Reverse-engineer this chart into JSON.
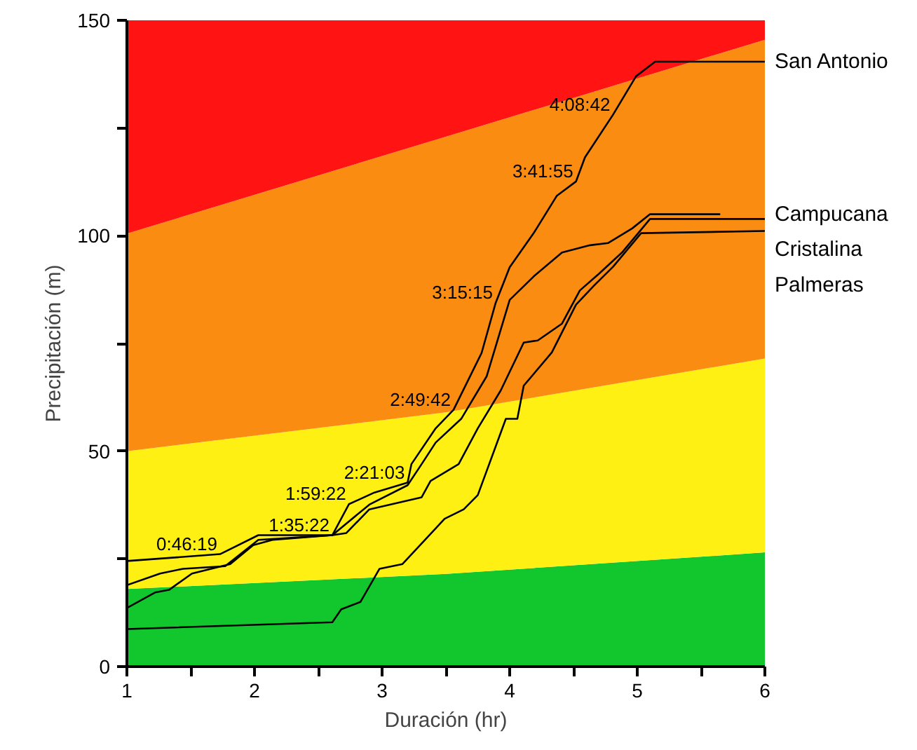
{
  "chart_data": {
    "type": "line",
    "xlabel": "Duración (hr)",
    "ylabel": "Precipitación (m)",
    "xlim": [
      1,
      6
    ],
    "ylim": [
      0,
      150
    ],
    "xticks": [
      1,
      {
        "value": 1.5,
        "label": null
      },
      2,
      {
        "value": 2.5,
        "label": null
      },
      3,
      {
        "value": 3.5,
        "label": null
      },
      4,
      {
        "value": 4.5,
        "label": null
      },
      5,
      {
        "value": 5.5,
        "label": null
      },
      6
    ],
    "yticks": [
      0,
      {
        "value": 25,
        "label": null
      },
      50,
      {
        "value": 75,
        "label": null
      },
      100,
      {
        "value": 125,
        "label": null
      },
      150
    ],
    "grid": false,
    "legend": false,
    "stacked": true,
    "series": [
      {
        "type": "area",
        "color": "#12c62e",
        "x": [
          1,
          3.5,
          6
        ],
        "values": [
          18,
          21.5,
          26.5
        ]
      },
      {
        "type": "area",
        "color": "#fff014",
        "x": [
          1,
          3.5,
          6
        ],
        "values": [
          32,
          37.5,
          45
        ]
      },
      {
        "type": "area",
        "color": "#fb8c12",
        "x": [
          1,
          3.5,
          6
        ],
        "values": [
          50.5,
          64,
          74
        ]
      },
      {
        "type": "area",
        "color": "#ff1313",
        "x": [
          1,
          3.5,
          6
        ],
        "values": [
          49.5,
          27,
          4.5
        ]
      },
      {
        "name": "San Antonio",
        "color": "#000000",
        "x": [
          1.0,
          1.73,
          2.03,
          2.61,
          2.74,
          2.94,
          3.2,
          3.23,
          3.42,
          3.56,
          3.78,
          3.89,
          4.0,
          4.19,
          4.37,
          4.52,
          4.59,
          4.81,
          4.99,
          5.14,
          6.0
        ],
        "values": [
          24.5,
          26.1,
          30.5,
          30.5,
          37.7,
          40.4,
          42.7,
          47,
          55.3,
          59.6,
          72.8,
          84.4,
          92.7,
          100.7,
          109.3,
          112.6,
          118.2,
          128.1,
          137,
          140.4,
          140.4
        ]
      },
      {
        "name": "Campucana",
        "color": "#000000",
        "x": [
          1.0,
          1.26,
          1.44,
          1.77,
          2.03,
          2.61,
          2.9,
          3.2,
          3.31,
          3.42,
          3.62,
          3.82,
          4.0,
          4.19,
          4.41,
          4.63,
          4.77,
          4.96,
          5.1,
          5.65
        ],
        "values": [
          18.9,
          21.6,
          22.7,
          23.3,
          29.4,
          30.5,
          37.6,
          42.1,
          47,
          52,
          57.5,
          67.4,
          85.1,
          90.6,
          96.1,
          97.8,
          98.3,
          101.7,
          105,
          105
        ]
      },
      {
        "name": "Cristalina",
        "color": "#000000",
        "x": [
          1.0,
          1.22,
          1.33,
          1.51,
          1.81,
          1.99,
          2.14,
          2.61,
          2.72,
          2.9,
          3.31,
          3.38,
          3.6,
          3.75,
          3.93,
          4.11,
          4.22,
          4.41,
          4.55,
          4.7,
          4.88,
          5.1,
          6.0
        ],
        "values": [
          13.6,
          17.2,
          17.8,
          21.6,
          23.8,
          28.2,
          29.4,
          30.5,
          31,
          36.5,
          39.3,
          43.1,
          47,
          55.3,
          64.1,
          75.2,
          75.7,
          79.6,
          87.3,
          91.2,
          96.1,
          103.9,
          103.9
        ]
      },
      {
        "name": "Palmeras",
        "color": "#000000",
        "x": [
          1.0,
          2.61,
          2.68,
          2.83,
          2.98,
          3.16,
          3.49,
          3.64,
          3.75,
          3.97,
          4.06,
          4.11,
          4.33,
          4.52,
          4.66,
          4.81,
          5.03,
          6.0
        ],
        "values": [
          8.7,
          10.3,
          13.3,
          15,
          22.7,
          23.8,
          34.3,
          36.5,
          39.8,
          57.5,
          57.5,
          65.2,
          72.9,
          84,
          88.4,
          92.8,
          100.6,
          101.1
        ]
      }
    ],
    "annotations": [
      {
        "text": "0:46:19",
        "x": 1.73,
        "y": 26.1
      },
      {
        "text": "1:35:22",
        "x": 2.61,
        "y": 30.5
      },
      {
        "text": "1:59:22",
        "x": 2.74,
        "y": 37.7
      },
      {
        "text": "2:21:03",
        "x": 3.2,
        "y": 42.7
      },
      {
        "text": "2:49:42",
        "x": 3.56,
        "y": 59.6
      },
      {
        "text": "3:15:15",
        "x": 3.89,
        "y": 84.4
      },
      {
        "text": "3:41:55",
        "x": 4.52,
        "y": 112.6
      },
      {
        "text": "4:08:42",
        "x": 4.81,
        "y": 128.1
      }
    ]
  }
}
